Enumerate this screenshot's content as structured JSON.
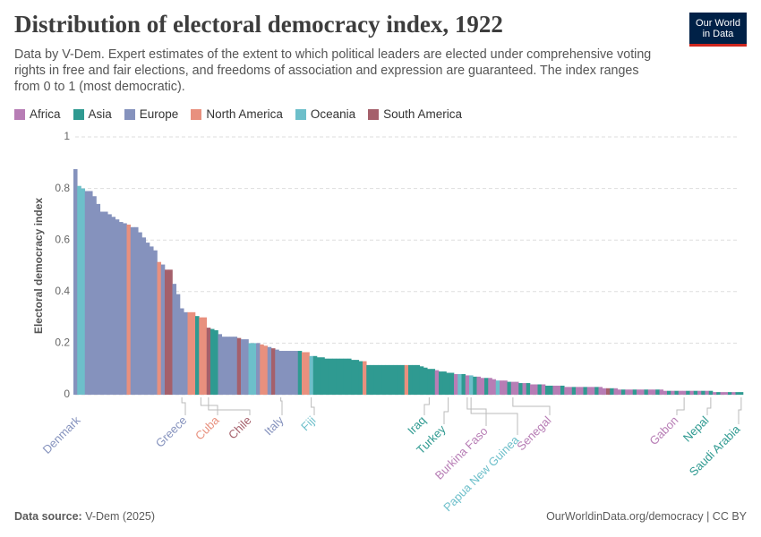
{
  "chart_data": {
    "type": "bar",
    "title": "Distribution of electoral democracy index, 1922",
    "subtitle": "Data by V-Dem. Expert estimates of the extent to which political leaders are elected under comprehensive voting rights in free and fair elections, and freedoms of association and expression are guaranteed. The index ranges from 0 to 1 (most democratic).",
    "logo": "Our World in Data",
    "y_label": "Electoral democracy index",
    "source_label": "Data source:",
    "source": "V-Dem (2025)",
    "credit": "OurWorldinData.org/democracy | CC BY",
    "legend": [
      {
        "name": "Africa",
        "color": "#b77db5"
      },
      {
        "name": "Asia",
        "color": "#2f9a91"
      },
      {
        "name": "Europe",
        "color": "#8592bd"
      },
      {
        "name": "North America",
        "color": "#e8907e"
      },
      {
        "name": "Oceania",
        "color": "#6dbfca"
      },
      {
        "name": "South America",
        "color": "#a5606b"
      }
    ],
    "ylim": [
      0,
      1
    ],
    "yticks": [
      0,
      0.2,
      0.4,
      0.6,
      0.8,
      1
    ],
    "grid": true,
    "categories": [
      "Denmark",
      null,
      null,
      null,
      null,
      null,
      null,
      null,
      null,
      null,
      null,
      null,
      null,
      null,
      null,
      null,
      null,
      null,
      null,
      null,
      null,
      null,
      null,
      null,
      null,
      null,
      null,
      null,
      "Greece",
      null,
      null,
      null,
      null,
      "Cuba",
      null,
      "Chile",
      null,
      null,
      null,
      null,
      null,
      null,
      null,
      null,
      null,
      null,
      null,
      null,
      null,
      null,
      null,
      null,
      null,
      null,
      "Italy",
      null,
      null,
      null,
      null,
      null,
      null,
      null,
      "Fiji",
      null,
      null,
      null,
      null,
      null,
      null,
      null,
      null,
      null,
      null,
      null,
      null,
      null,
      null,
      null,
      null,
      null,
      null,
      null,
      null,
      null,
      null,
      null,
      null,
      null,
      null,
      null,
      null,
      null,
      null,
      "Iraq",
      null,
      null,
      null,
      null,
      "Turkey",
      null,
      null,
      null,
      null,
      "Burkina Faso",
      "Papua New Guinea",
      null,
      null,
      null,
      null,
      null,
      null,
      null,
      null,
      null,
      null,
      "Senegal",
      null,
      null,
      null,
      null,
      null,
      null,
      null,
      null,
      null,
      null,
      null,
      null,
      null,
      null,
      null,
      null,
      null,
      null,
      null,
      null,
      null,
      null,
      null,
      null,
      null,
      null,
      null,
      null,
      null,
      null,
      null,
      null,
      null,
      null,
      null,
      null,
      null,
      null,
      null,
      null,
      null,
      null,
      null,
      null,
      "Gabon",
      null,
      null,
      null,
      null,
      null,
      null,
      "Nepal",
      null,
      null,
      null,
      null,
      null,
      null,
      null,
      "Saudi Arabia"
    ],
    "values": [
      0.875,
      0.81,
      0.8,
      0.79,
      0.79,
      0.77,
      0.74,
      0.71,
      0.71,
      0.7,
      0.69,
      0.68,
      0.67,
      0.665,
      0.66,
      0.65,
      0.65,
      0.63,
      0.61,
      0.59,
      0.575,
      0.56,
      0.515,
      0.505,
      0.485,
      0.485,
      0.43,
      0.39,
      0.335,
      0.32,
      0.32,
      0.32,
      0.305,
      0.3,
      0.3,
      0.26,
      0.255,
      0.25,
      0.235,
      0.225,
      0.225,
      0.225,
      0.225,
      0.22,
      0.215,
      0.215,
      0.2,
      0.2,
      0.2,
      0.195,
      0.19,
      0.185,
      0.18,
      0.175,
      0.17,
      0.17,
      0.17,
      0.17,
      0.17,
      0.17,
      0.165,
      0.165,
      0.15,
      0.15,
      0.145,
      0.145,
      0.14,
      0.14,
      0.14,
      0.14,
      0.14,
      0.14,
      0.14,
      0.135,
      0.135,
      0.13,
      0.13,
      0.115,
      0.115,
      0.115,
      0.115,
      0.115,
      0.115,
      0.115,
      0.115,
      0.115,
      0.115,
      0.115,
      0.115,
      0.115,
      0.115,
      0.11,
      0.105,
      0.1,
      0.1,
      0.095,
      0.09,
      0.09,
      0.085,
      0.085,
      0.08,
      0.08,
      0.08,
      0.075,
      0.075,
      0.07,
      0.07,
      0.065,
      0.065,
      0.065,
      0.06,
      0.055,
      0.055,
      0.055,
      0.05,
      0.05,
      0.05,
      0.045,
      0.045,
      0.045,
      0.04,
      0.04,
      0.04,
      0.04,
      0.035,
      0.035,
      0.035,
      0.035,
      0.035,
      0.03,
      0.03,
      0.03,
      0.03,
      0.03,
      0.03,
      0.03,
      0.03,
      0.03,
      0.03,
      0.025,
      0.025,
      0.025,
      0.025,
      0.02,
      0.02,
      0.02,
      0.02,
      0.02,
      0.02,
      0.02,
      0.02,
      0.02,
      0.02,
      0.02,
      0.02,
      0.015,
      0.015,
      0.015,
      0.015,
      0.015,
      0.015,
      0.015,
      0.015,
      0.015,
      0.015,
      0.015,
      0.015,
      0.015,
      0.01,
      0.01,
      0.01,
      0.01,
      0.01,
      0.01,
      0.01,
      0.01
    ],
    "colors": [
      "#8592bd",
      "#6dbfca",
      "#6dbfca",
      "#8592bd",
      "#8592bd",
      "#8592bd",
      "#8592bd",
      "#8592bd",
      "#8592bd",
      "#8592bd",
      "#8592bd",
      "#8592bd",
      "#8592bd",
      "#8592bd",
      "#e8907e",
      "#8592bd",
      "#8592bd",
      "#8592bd",
      "#8592bd",
      "#8592bd",
      "#8592bd",
      "#8592bd",
      "#e8907e",
      "#8592bd",
      "#a5606b",
      "#a5606b",
      "#8592bd",
      "#8592bd",
      "#8592bd",
      "#8592bd",
      "#e8907e",
      "#e8907e",
      "#2f9a91",
      "#e8907e",
      "#e8907e",
      "#a5606b",
      "#2f9a91",
      "#2f9a91",
      "#8592bd",
      "#8592bd",
      "#8592bd",
      "#8592bd",
      "#8592bd",
      "#a5606b",
      "#8592bd",
      "#8592bd",
      "#6dbfca",
      "#6dbfca",
      "#8592bd",
      "#e8907e",
      "#e8907e",
      "#8592bd",
      "#a5606b",
      "#8592bd",
      "#8592bd",
      "#8592bd",
      "#8592bd",
      "#8592bd",
      "#8592bd",
      "#2f9a91",
      "#e8907e",
      "#e8907e",
      "#6dbfca",
      "#2f9a91",
      "#2f9a91",
      "#2f9a91",
      "#2f9a91",
      "#2f9a91",
      "#2f9a91",
      "#2f9a91",
      "#2f9a91",
      "#2f9a91",
      "#2f9a91",
      "#2f9a91",
      "#2f9a91",
      "#2f9a91",
      "#e8907e",
      "#2f9a91",
      "#2f9a91",
      "#2f9a91",
      "#2f9a91",
      "#2f9a91",
      "#2f9a91",
      "#2f9a91",
      "#2f9a91",
      "#2f9a91",
      "#2f9a91",
      "#e8907e",
      "#2f9a91",
      "#2f9a91",
      "#2f9a91",
      "#2f9a91",
      "#2f9a91",
      "#2f9a91",
      "#2f9a91",
      "#b77db5",
      "#2f9a91",
      "#2f9a91",
      "#2f9a91",
      "#2f9a91",
      "#b77db5",
      "#6dbfca",
      "#2f9a91",
      "#b77db5",
      "#6dbfca",
      "#2f9a91",
      "#b77db5",
      "#b77db5",
      "#2f9a91",
      "#b77db5",
      "#b77db5",
      "#6dbfca",
      "#b77db5",
      "#b77db5",
      "#2f9a91",
      "#b77db5",
      "#b77db5",
      "#2f9a91",
      "#b77db5",
      "#2f9a91",
      "#b77db5",
      "#b77db5",
      "#2f9a91",
      "#b77db5",
      "#2f9a91",
      "#2f9a91",
      "#b77db5",
      "#b77db5",
      "#2f9a91",
      "#b77db5",
      "#b77db5",
      "#2f9a91",
      "#b77db5",
      "#b77db5",
      "#2f9a91",
      "#b77db5",
      "#b77db5",
      "#2f9a91",
      "#b77db5",
      "#b77db5",
      "#a5606b",
      "#2f9a91",
      "#b77db5",
      "#b77db5",
      "#2f9a91",
      "#b77db5",
      "#b77db5",
      "#2f9a91",
      "#b77db5",
      "#b77db5",
      "#2f9a91",
      "#b77db5",
      "#b77db5",
      "#2f9a91",
      "#b77db5",
      "#b77db5",
      "#2f9a91",
      "#b77db5",
      "#2f9a91",
      "#b77db5",
      "#b77db5",
      "#2f9a91",
      "#b77db5",
      "#2f9a91",
      "#b77db5",
      "#2f9a91",
      "#b77db5",
      "#2f9a91",
      "#b77db5",
      "#2f9a91",
      "#b77db5",
      "#b77db5",
      "#2f9a91",
      "#b77db5",
      "#2f9a91",
      "#2f9a91"
    ]
  }
}
